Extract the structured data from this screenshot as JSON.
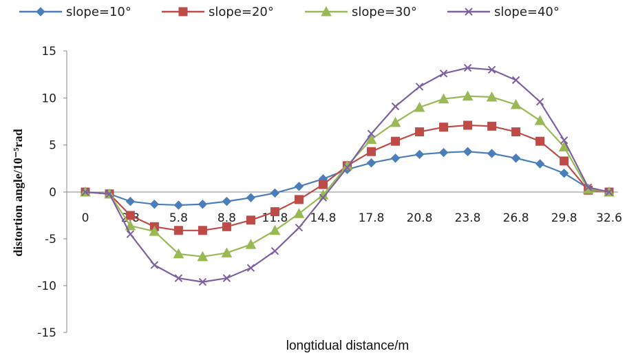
{
  "chart_data": {
    "type": "line",
    "title": "",
    "xlabel": "longtidual distance/m",
    "ylabel": "distortion angle/10⁻⁵rad",
    "ylim": [
      -15,
      15
    ],
    "yticks": [
      "15",
      "10",
      "5",
      "0",
      "-5",
      "-10",
      "-15"
    ],
    "xtick_labels": [
      "0",
      "2.8",
      "5.8",
      "8.8",
      "11.8",
      "14.8",
      "17.8",
      "20.8",
      "23.8",
      "26.8",
      "29.8",
      "32.6"
    ],
    "legend_position": "top",
    "grid": false,
    "x": [
      0,
      1.5,
      2.8,
      4.3,
      5.8,
      7.3,
      8.8,
      10.3,
      11.8,
      13.3,
      14.8,
      16.3,
      17.8,
      19.3,
      20.8,
      22.3,
      23.8,
      25.3,
      26.8,
      28.3,
      29.8,
      31.3,
      32.6
    ],
    "series": [
      {
        "name": "slope=10°",
        "color": "#4a7ebb",
        "marker": "diamond",
        "values": [
          0,
          -0.2,
          -1.0,
          -1.3,
          -1.4,
          -1.3,
          -1.0,
          -0.6,
          -0.1,
          0.6,
          1.4,
          2.4,
          3.1,
          3.6,
          4.0,
          4.2,
          4.3,
          4.1,
          3.6,
          3.0,
          2.0,
          0.4,
          0
        ]
      },
      {
        "name": "slope=20°",
        "color": "#be4b48",
        "marker": "square",
        "values": [
          0,
          -0.2,
          -2.5,
          -3.7,
          -4.1,
          -4.1,
          -3.7,
          -3.0,
          -2.1,
          -0.8,
          0.8,
          2.8,
          4.3,
          5.4,
          6.4,
          6.9,
          7.1,
          7.0,
          6.4,
          5.4,
          3.3,
          0.2,
          0
        ]
      },
      {
        "name": "slope=30°",
        "color": "#98b954",
        "marker": "triangle",
        "values": [
          0,
          -0.2,
          -3.6,
          -4.2,
          -6.6,
          -6.9,
          -6.5,
          -5.6,
          -4.1,
          -2.3,
          -0.3,
          2.8,
          5.6,
          7.4,
          9.0,
          9.9,
          10.2,
          10.1,
          9.3,
          7.6,
          4.8,
          0.3,
          0
        ]
      },
      {
        "name": "slope=40°",
        "color": "#7d60a0",
        "marker": "x",
        "values": [
          0,
          -0.2,
          -4.5,
          -7.8,
          -9.2,
          -9.6,
          -9.2,
          -8.1,
          -6.3,
          -3.8,
          -0.6,
          2.6,
          6.2,
          9.1,
          11.2,
          12.6,
          13.2,
          13.0,
          11.9,
          9.6,
          5.5,
          0.5,
          0
        ]
      }
    ]
  }
}
